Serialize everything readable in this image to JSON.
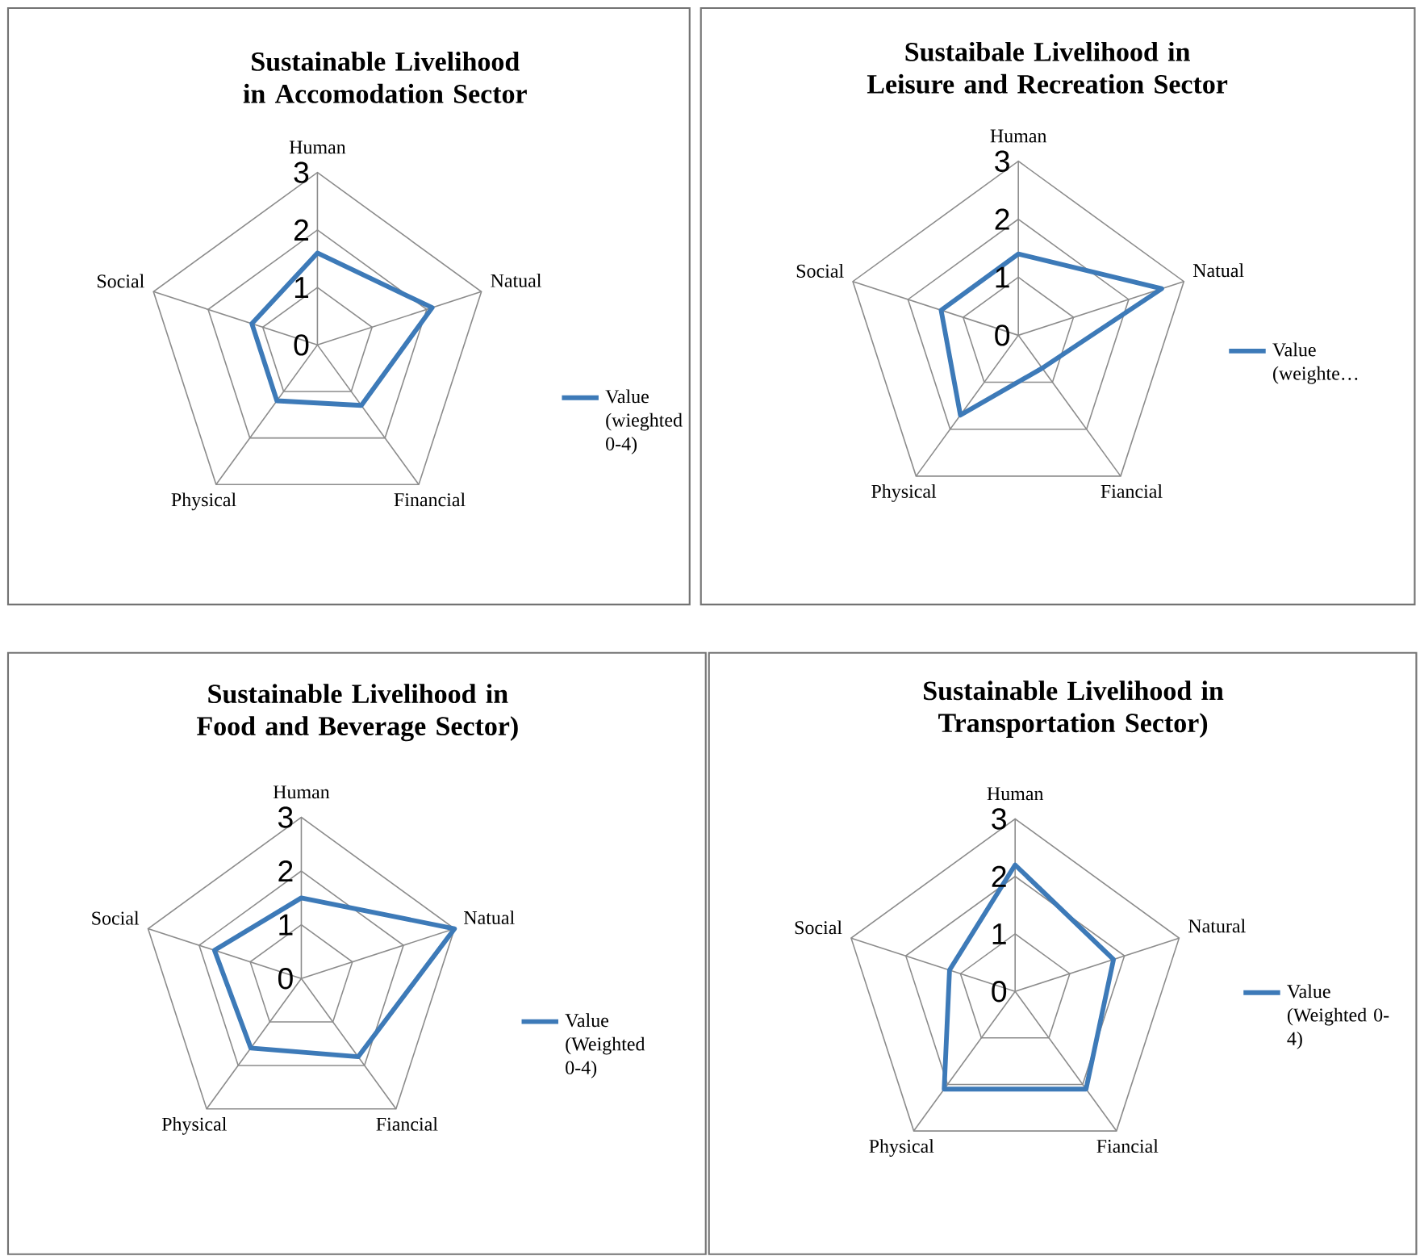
{
  "chart_data": [
    {
      "type": "radar",
      "title": "Sustainable Livelihood in Accomodation Sector",
      "categories": [
        "Human",
        "Natual",
        "Financial",
        "Physical",
        "Social"
      ],
      "series": [
        {
          "name": "Value (wieghted 0-4)",
          "color": "#3d7ab8",
          "values": [
            1.6,
            2.1,
            1.3,
            1.2,
            1.2
          ]
        }
      ],
      "ylim": [
        0,
        3
      ],
      "yticks": [
        0,
        1,
        2,
        3
      ],
      "legend": "right"
    },
    {
      "type": "radar",
      "title": "Sustaibale Livelihood in Leisure and Recreation Sector",
      "categories": [
        "Human",
        "Natual",
        "Fiancial",
        "Physical",
        "Social"
      ],
      "series": [
        {
          "name": "Value (weighte…",
          "color": "#3d7ab8",
          "values": [
            1.4,
            2.6,
            0.7,
            1.7,
            1.4
          ]
        }
      ],
      "ylim": [
        0,
        3
      ],
      "yticks": [
        0,
        1,
        2,
        3
      ],
      "legend": "right"
    },
    {
      "type": "radar",
      "title": "Sustainable Livelihood in Food and Beverage Sector)",
      "categories": [
        "Human",
        "Natual",
        "Fiancial",
        "Physical",
        "Social"
      ],
      "series": [
        {
          "name": "Value (Weighted 0-4)",
          "color": "#3d7ab8",
          "values": [
            1.5,
            3.0,
            1.8,
            1.6,
            1.7
          ]
        }
      ],
      "ylim": [
        0,
        3
      ],
      "yticks": [
        0,
        1,
        2,
        3
      ],
      "legend": "right"
    },
    {
      "type": "radar",
      "title": "Sustainable Livelihood in Transportation Sector)",
      "categories": [
        "Human",
        "Natural",
        "Fiancial",
        "Physical",
        "Social"
      ],
      "series": [
        {
          "name": "Value (Weighted 0-4)",
          "color": "#3d7ab8",
          "values": [
            2.2,
            1.8,
            2.1,
            2.1,
            1.2
          ]
        }
      ],
      "ylim": [
        0,
        3
      ],
      "yticks": [
        0,
        1,
        2,
        3
      ],
      "legend": "right"
    }
  ]
}
